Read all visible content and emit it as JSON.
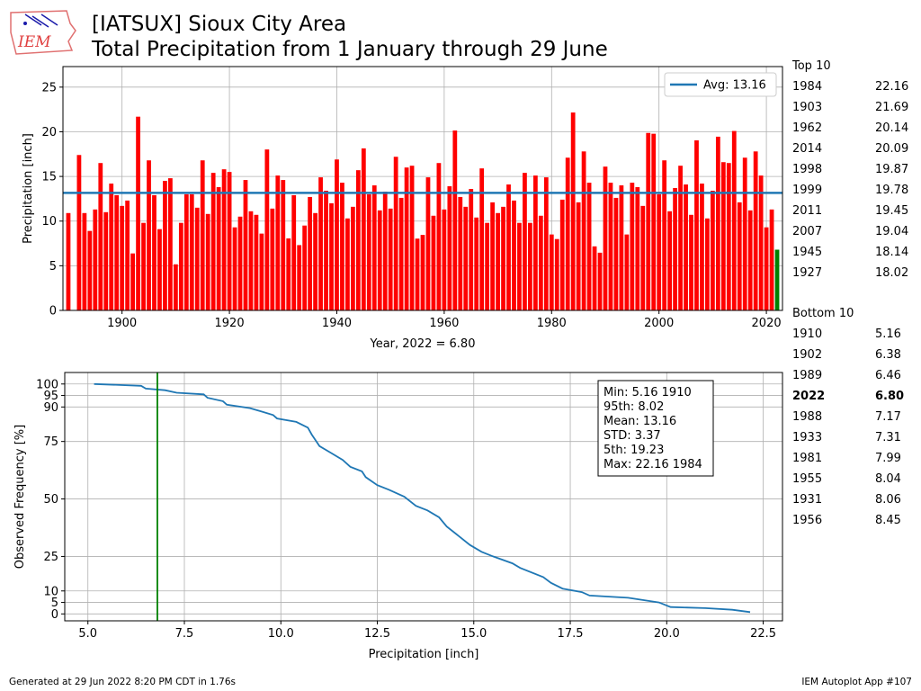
{
  "header": {
    "title_line1": "[IATSUX] Sioux City Area",
    "title_line2": "Total Precipitation from 1 January through 29 June",
    "logo_text": "IEM"
  },
  "footer": {
    "generated": "Generated at 29 Jun 2022 8:20 PM CDT in 1.76s",
    "app": "IEM Autoplot App #107"
  },
  "top10": {
    "heading": "Top 10",
    "rows": [
      {
        "year": "1984",
        "value": "22.16"
      },
      {
        "year": "1903",
        "value": "21.69"
      },
      {
        "year": "1962",
        "value": "20.14"
      },
      {
        "year": "2014",
        "value": "20.09"
      },
      {
        "year": "1998",
        "value": "19.87"
      },
      {
        "year": "1999",
        "value": "19.78"
      },
      {
        "year": "2011",
        "value": "19.45"
      },
      {
        "year": "2007",
        "value": "19.04"
      },
      {
        "year": "1945",
        "value": "18.14"
      },
      {
        "year": "1927",
        "value": "18.02"
      }
    ]
  },
  "bottom10": {
    "heading": "Bottom 10",
    "rows": [
      {
        "year": "1910",
        "value": "5.16",
        "bold": false
      },
      {
        "year": "1902",
        "value": "6.38",
        "bold": false
      },
      {
        "year": "1989",
        "value": "6.46",
        "bold": false
      },
      {
        "year": "2022",
        "value": "6.80",
        "bold": true
      },
      {
        "year": "1988",
        "value": "7.17",
        "bold": false
      },
      {
        "year": "1933",
        "value": "7.31",
        "bold": false
      },
      {
        "year": "1981",
        "value": "7.99",
        "bold": false
      },
      {
        "year": "1955",
        "value": "8.04",
        "bold": false
      },
      {
        "year": "1931",
        "value": "8.06",
        "bold": false
      },
      {
        "year": "1956",
        "value": "8.45",
        "bold": false
      }
    ]
  },
  "colors": {
    "bar": "#ff0000",
    "current_bar": "#008000",
    "avg_line": "#1f77b4",
    "freq_line": "#1f77b4",
    "marker_line": "#008000",
    "grid": "#b0b0b0"
  },
  "chart_data": [
    {
      "type": "bar",
      "ylabel": "Precipitation [inch]",
      "xlabel": "Year, 2022 = 6.80",
      "xlim": [
        1889,
        2023
      ],
      "ylim": [
        0,
        27.3
      ],
      "xticks": [
        1900,
        1920,
        1940,
        1960,
        1980,
        2000,
        2020
      ],
      "yticks": [
        0,
        5,
        10,
        15,
        20,
        25
      ],
      "grid": true,
      "legend": {
        "label": "Avg: 13.16",
        "placement": "top-right"
      },
      "average": 13.16,
      "current_year": 2022,
      "x": [
        1890,
        1891,
        1892,
        1893,
        1894,
        1895,
        1896,
        1897,
        1898,
        1899,
        1900,
        1901,
        1902,
        1903,
        1904,
        1905,
        1906,
        1907,
        1908,
        1909,
        1910,
        1911,
        1912,
        1913,
        1914,
        1915,
        1916,
        1917,
        1918,
        1919,
        1920,
        1921,
        1922,
        1923,
        1924,
        1925,
        1926,
        1927,
        1928,
        1929,
        1930,
        1931,
        1932,
        1933,
        1934,
        1935,
        1936,
        1937,
        1938,
        1939,
        1940,
        1941,
        1942,
        1943,
        1944,
        1945,
        1946,
        1947,
        1948,
        1949,
        1950,
        1951,
        1952,
        1953,
        1954,
        1955,
        1956,
        1957,
        1958,
        1959,
        1960,
        1961,
        1962,
        1963,
        1964,
        1965,
        1966,
        1967,
        1968,
        1969,
        1970,
        1971,
        1972,
        1973,
        1974,
        1975,
        1976,
        1977,
        1978,
        1979,
        1980,
        1981,
        1982,
        1983,
        1984,
        1985,
        1986,
        1987,
        1988,
        1989,
        1990,
        1991,
        1992,
        1993,
        1994,
        1995,
        1996,
        1997,
        1998,
        1999,
        2000,
        2001,
        2002,
        2003,
        2004,
        2005,
        2006,
        2007,
        2008,
        2009,
        2010,
        2011,
        2012,
        2013,
        2014,
        2015,
        2016,
        2017,
        2018,
        2019,
        2020,
        2021,
        2022
      ],
      "values": [
        10.9,
        0,
        17.4,
        10.9,
        8.9,
        11.3,
        16.5,
        11.0,
        14.2,
        12.9,
        11.7,
        12.3,
        6.38,
        21.69,
        9.8,
        16.8,
        12.9,
        9.1,
        14.5,
        14.8,
        5.16,
        9.8,
        13.0,
        13.0,
        11.5,
        16.8,
        10.8,
        15.4,
        13.8,
        15.8,
        15.5,
        9.3,
        10.5,
        14.6,
        11.1,
        10.7,
        8.6,
        18.02,
        11.4,
        15.1,
        14.6,
        8.06,
        12.9,
        7.31,
        9.5,
        12.7,
        10.9,
        14.9,
        13.4,
        12.0,
        16.9,
        14.3,
        10.3,
        11.6,
        15.7,
        18.14,
        13.0,
        14.0,
        11.2,
        13.3,
        11.4,
        17.2,
        12.6,
        16.0,
        16.2,
        8.04,
        8.45,
        14.9,
        10.6,
        16.5,
        11.3,
        13.9,
        20.14,
        12.7,
        11.6,
        13.6,
        10.4,
        15.9,
        9.8,
        12.1,
        10.9,
        11.6,
        14.1,
        12.3,
        9.8,
        15.4,
        9.8,
        15.1,
        10.6,
        14.9,
        8.5,
        7.99,
        12.4,
        17.1,
        22.16,
        12.1,
        17.8,
        14.3,
        7.17,
        6.46,
        16.1,
        14.3,
        12.6,
        14.0,
        8.5,
        14.3,
        13.8,
        11.7,
        19.87,
        19.78,
        13.0,
        16.8,
        11.1,
        13.7,
        16.2,
        14.1,
        10.7,
        19.04,
        14.2,
        10.3,
        13.4,
        19.45,
        16.6,
        16.5,
        20.09,
        12.1,
        17.1,
        11.2,
        17.8,
        15.1,
        9.3,
        11.3,
        6.8
      ]
    },
    {
      "type": "line",
      "xlabel": "Precipitation [inch]",
      "ylabel": "Observed Frequency [%]",
      "xlim": [
        4.4,
        23.0
      ],
      "ylim": [
        -3,
        105
      ],
      "xticks": [
        5.0,
        7.5,
        10.0,
        12.5,
        15.0,
        17.5,
        20.0,
        22.5
      ],
      "yticks": [
        0,
        5,
        10,
        25,
        50,
        75,
        90,
        95,
        100
      ],
      "grid": true,
      "marker_value": 6.8,
      "stats": [
        "Min: 5.16 1910",
        "95th: 8.02",
        "Mean: 13.16",
        "STD: 3.37",
        "5th: 19.23",
        "Max: 22.16 1984"
      ],
      "points": [
        [
          5.16,
          100
        ],
        [
          6.38,
          99.2
        ],
        [
          6.5,
          98
        ],
        [
          7.0,
          97.3
        ],
        [
          7.3,
          96.2
        ],
        [
          8.0,
          95.5
        ],
        [
          8.1,
          94
        ],
        [
          8.5,
          92.5
        ],
        [
          8.6,
          91
        ],
        [
          9.2,
          89.5
        ],
        [
          9.5,
          88
        ],
        [
          9.8,
          86.5
        ],
        [
          9.9,
          85
        ],
        [
          10.4,
          83.5
        ],
        [
          10.7,
          81
        ],
        [
          10.8,
          78
        ],
        [
          10.9,
          75.5
        ],
        [
          11.0,
          73
        ],
        [
          11.3,
          70
        ],
        [
          11.6,
          67
        ],
        [
          11.8,
          64
        ],
        [
          12.1,
          62
        ],
        [
          12.2,
          59.5
        ],
        [
          12.5,
          56
        ],
        [
          12.8,
          54
        ],
        [
          13.2,
          51
        ],
        [
          13.5,
          47
        ],
        [
          13.8,
          45
        ],
        [
          14.1,
          42
        ],
        [
          14.3,
          38
        ],
        [
          14.6,
          34
        ],
        [
          14.9,
          30
        ],
        [
          15.2,
          27
        ],
        [
          15.5,
          25
        ],
        [
          16.0,
          22
        ],
        [
          16.2,
          20
        ],
        [
          16.8,
          16
        ],
        [
          17.0,
          13.5
        ],
        [
          17.3,
          11
        ],
        [
          17.8,
          9.5
        ],
        [
          18.0,
          8
        ],
        [
          19.0,
          7
        ],
        [
          19.8,
          5
        ],
        [
          20.1,
          3
        ],
        [
          21.0,
          2.5
        ],
        [
          21.7,
          1.8
        ],
        [
          22.16,
          0.8
        ]
      ]
    }
  ]
}
